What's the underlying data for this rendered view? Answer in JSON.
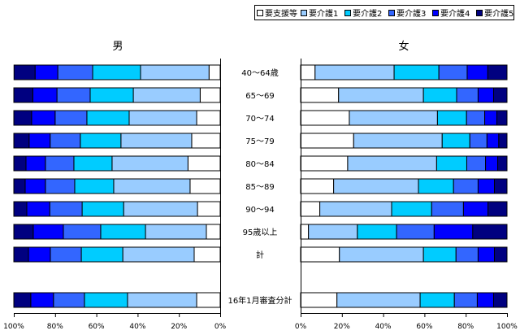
{
  "chart_data": {
    "type": "bar",
    "orientation": "horizontal-stacked-100",
    "legend_position": "top-right",
    "legend": [
      "要支援等",
      "要介護1",
      "要介護2",
      "要介護3",
      "要介護4",
      "要介護5"
    ],
    "colors": [
      "#ffffff",
      "#99ccff",
      "#00ccff",
      "#3366ff",
      "#0000ff",
      "#000080"
    ],
    "categories": [
      "40～64歳",
      "65～69",
      "70～74",
      "75～79",
      "80～84",
      "85～89",
      "90～94",
      "95歳以上",
      "計",
      "16年1月審査分計"
    ],
    "xlim": [
      0,
      100
    ],
    "tick_labels": [
      "0%",
      "20%",
      "40%",
      "60%",
      "80%",
      "100%"
    ],
    "panels": [
      {
        "title": "男",
        "direction": "right-to-left",
        "values": [
          [
            5.4,
            33.2,
            23.2,
            16.9,
            11.0,
            10.2
          ],
          [
            9.7,
            32.4,
            20.9,
            16.1,
            11.7,
            9.2
          ],
          [
            11.4,
            32.7,
            20.5,
            15.4,
            11.4,
            8.6
          ],
          [
            13.8,
            34.3,
            19.7,
            14.6,
            10.2,
            7.4
          ],
          [
            15.6,
            36.8,
            18.5,
            13.8,
            9.4,
            5.9
          ],
          [
            14.6,
            37.0,
            18.9,
            14.2,
            9.8,
            5.5
          ],
          [
            11.0,
            35.8,
            20.1,
            15.7,
            11.1,
            6.3
          ],
          [
            6.7,
            29.5,
            21.7,
            18.1,
            14.6,
            9.4
          ],
          [
            12.6,
            34.6,
            20.1,
            15.0,
            10.6,
            7.1
          ],
          [
            11.4,
            33.5,
            20.9,
            15.0,
            11.0,
            8.2
          ]
        ]
      },
      {
        "title": "女",
        "direction": "left-to-right",
        "values": [
          [
            7.0,
            38.3,
            21.7,
            13.7,
            10.0,
            9.3
          ],
          [
            18.4,
            41.1,
            16.1,
            10.4,
            7.5,
            6.5
          ],
          [
            23.6,
            42.7,
            14.1,
            8.8,
            5.9,
            4.9
          ],
          [
            25.7,
            42.9,
            13.4,
            8.3,
            5.7,
            4.0
          ],
          [
            22.8,
            43.1,
            14.6,
            9.1,
            5.9,
            4.5
          ],
          [
            16.0,
            41.1,
            17.0,
            11.9,
            7.9,
            6.1
          ],
          [
            9.3,
            34.8,
            19.4,
            15.4,
            11.9,
            9.2
          ],
          [
            3.8,
            23.7,
            19.0,
            18.2,
            18.7,
            16.6
          ],
          [
            18.8,
            40.7,
            15.8,
            10.7,
            7.9,
            6.1
          ],
          [
            17.6,
            40.3,
            16.6,
            11.1,
            7.9,
            6.5
          ]
        ]
      }
    ]
  }
}
